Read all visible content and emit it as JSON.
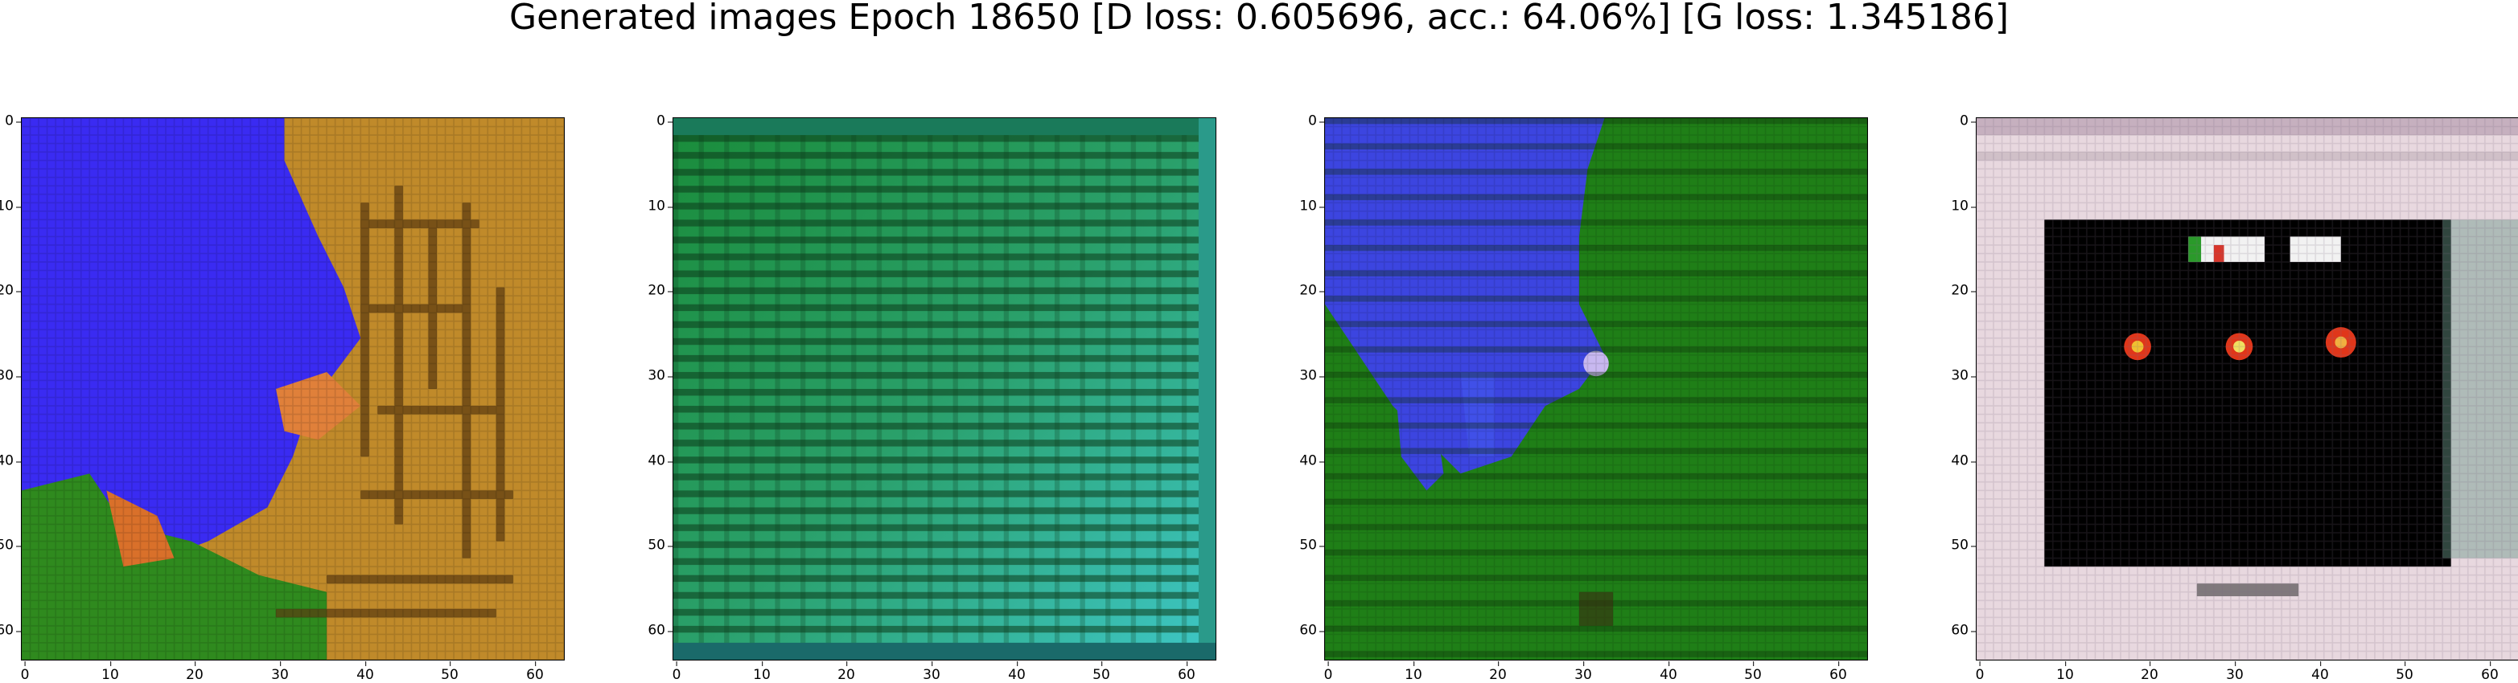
{
  "figure": {
    "title": "Generated images Epoch 18650 [D loss: 0.605696, acc.: 64.06%] [G loss: 1.345186]"
  },
  "panels": [
    {
      "x_ticks": [
        "0",
        "10",
        "20",
        "30",
        "40",
        "50",
        "60"
      ],
      "y_ticks": [
        "0",
        "10",
        "20",
        "30",
        "40",
        "50",
        "60"
      ]
    },
    {
      "x_ticks": [
        "0",
        "10",
        "20",
        "30",
        "40",
        "50",
        "60"
      ],
      "y_ticks": [
        "0",
        "10",
        "20",
        "30",
        "40",
        "50",
        "60"
      ]
    },
    {
      "x_ticks": [
        "0",
        "10",
        "20",
        "30",
        "40",
        "50",
        "60"
      ],
      "y_ticks": [
        "0",
        "10",
        "20",
        "30",
        "40",
        "50",
        "60"
      ]
    },
    {
      "x_ticks": [
        "0",
        "10",
        "20",
        "30",
        "40",
        "50",
        "60"
      ],
      "y_ticks": [
        "0",
        "10",
        "20",
        "30",
        "40",
        "50",
        "60"
      ]
    }
  ],
  "colors": {
    "panel1": {
      "blue": "#3a2bf2",
      "orange": "#c08a2a",
      "green": "#2f8a1e",
      "dark": "#5a3a10"
    },
    "panel2": {
      "green": "#1a8c4a",
      "cyan": "#3ec7c7",
      "dark": "#0a3a1a"
    },
    "panel3": {
      "green": "#1f7f17",
      "blue": "#3c45e0",
      "dark": "#0a2a08"
    },
    "panel4": {
      "frame": "#e8d8df",
      "black": "#000000",
      "red": "#e0361a",
      "white": "#f2f2f2"
    }
  }
}
